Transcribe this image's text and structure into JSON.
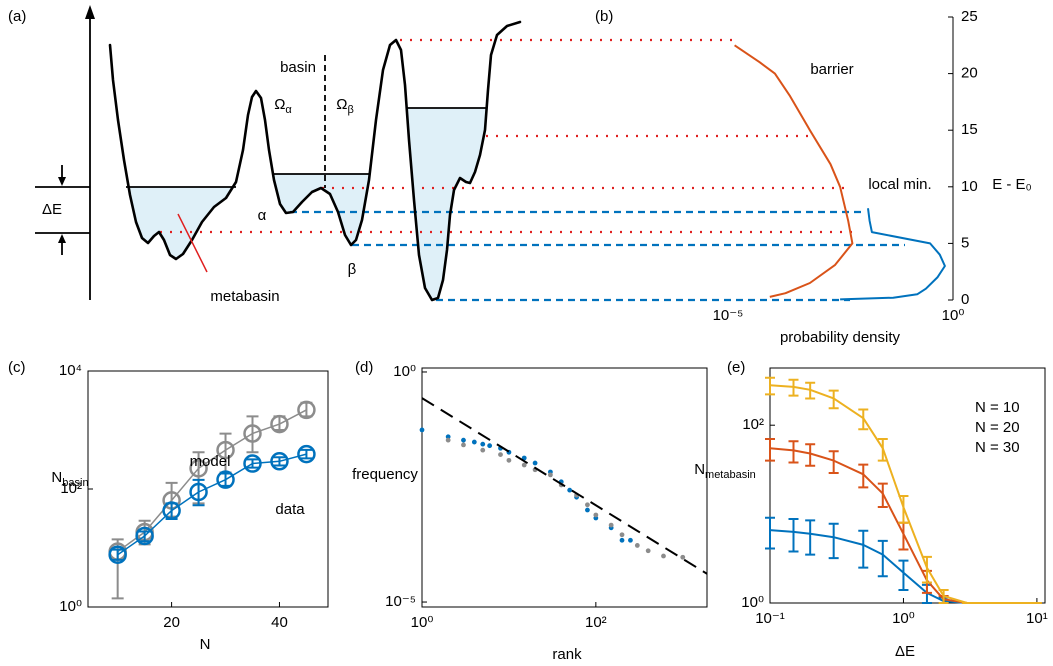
{
  "diagram": {
    "panel": "(a)",
    "delta_e": "ΔE",
    "basin": "basin",
    "omega_alpha": {
      "symbol": "Ω",
      "sub": "α"
    },
    "omega_beta": {
      "symbol": "Ω",
      "sub": "β"
    },
    "alpha": "α",
    "beta": "β",
    "metabasin": "metabasin"
  },
  "chart_data": [
    {
      "type": "line",
      "panel": "(b)",
      "xlabel": "probability density",
      "ylabel": "E - E₀",
      "xscale": "log",
      "xlim": [
        1e-05,
        1
      ],
      "xticks": [
        {
          "value": 1e-05,
          "label": "10⁻⁵"
        },
        {
          "value": 1,
          "label": "10⁰"
        }
      ],
      "ylim": [
        0,
        25
      ],
      "yticks": [
        0,
        5,
        10,
        15,
        20,
        25
      ],
      "yaxis_side": "right",
      "series": [
        {
          "name": "barrier",
          "color": "#d95319",
          "x": [
            1.4e-05,
            5.1e-05,
            0.00011,
            0.00024,
            0.00066,
            0.0019,
            0.0031,
            0.0047,
            0.0058,
            0.0024,
            0.00066,
            0.00019,
            8.5e-05
          ],
          "y": [
            22.5,
            21,
            20,
            18,
            15,
            12,
            10,
            7,
            5,
            3.1,
            1.5,
            0.6,
            0.27
          ]
        },
        {
          "name": "local min.",
          "color": "#0072bd",
          "x": [
            0.0129,
            0.014,
            0.0158,
            0.31,
            0.51,
            0.66,
            0.45,
            0.25,
            0.16,
            0.047,
            0.0031
          ],
          "y": [
            8.1,
            7,
            6,
            5,
            4,
            3,
            2,
            1,
            0.5,
            0.2,
            0.05
          ]
        }
      ]
    },
    {
      "type": "errorbar-line",
      "panel": "(c)",
      "xlabel": "N",
      "ylabel": "N",
      "ylabel_sub": "basin",
      "yscale": "log",
      "xlim": [
        4.5,
        49
      ],
      "xticks": [
        20,
        40
      ],
      "ylim": [
        1,
        10000
      ],
      "yticks": [
        {
          "value": 1,
          "label": "10⁰"
        },
        {
          "value": 100,
          "label": "10²"
        },
        {
          "value": 10000,
          "label": "10⁴"
        }
      ],
      "markers": true,
      "x": [
        10,
        15,
        20,
        25,
        30,
        35,
        40,
        45
      ],
      "series": [
        {
          "name": "model",
          "color": "#8c8c8c",
          "values": [
            8.7,
            18.6,
            64,
            224,
            457,
            871,
            1260,
            2190
          ],
          "err_low": [
            1.4,
            11.5,
            34,
            57,
            190,
            420,
            1000,
            1700
          ],
          "err_high": [
            14,
            29,
            127,
            420,
            870,
            1700,
            1700,
            2900
          ]
        },
        {
          "name": "data",
          "color": "#0072bd",
          "values": [
            7.7,
            16,
            43,
            89,
            144,
            270,
            295,
            390
          ],
          "err_low": [
            6.3,
            13,
            31,
            53,
            113,
            230,
            250,
            330
          ],
          "err_high": [
            9.4,
            19,
            57,
            143,
            183,
            318,
            346,
            460
          ]
        }
      ]
    },
    {
      "type": "scatter",
      "panel": "(d)",
      "xlabel": "rank",
      "ylabel": "frequency",
      "xscale": "log",
      "yscale": "log",
      "xlim": [
        1,
        1900
      ],
      "xticks": [
        {
          "value": 1,
          "label": "10⁰"
        },
        {
          "value": 100,
          "label": "10²"
        }
      ],
      "ylim": [
        7.8e-06,
        1.22
      ],
      "yticks": [
        {
          "value": 1,
          "label": "10⁰"
        },
        {
          "value": 1e-05,
          "label": "10⁻⁵"
        }
      ],
      "series": [
        {
          "color": "#0072bd",
          "x": [
            1,
            2,
            3,
            4,
            5,
            6,
            8,
            10,
            15,
            20,
            30,
            40,
            50,
            60,
            80,
            100,
            150,
            200,
            250
          ],
          "y": [
            0.055,
            0.039,
            0.033,
            0.03,
            0.027,
            0.025,
            0.022,
            0.018,
            0.0135,
            0.0105,
            0.0067,
            0.0041,
            0.0027,
            0.0019,
            0.001,
            0.00067,
            0.00041,
            0.00022,
            0.00022
          ]
        },
        {
          "color": "#8c8c8c",
          "x": [
            2,
            3,
            5,
            8,
            10,
            15,
            20,
            30,
            40,
            60,
            80,
            100,
            150,
            200,
            300,
            400,
            600,
            1000
          ],
          "y": [
            0.033,
            0.026,
            0.02,
            0.016,
            0.012,
            0.0095,
            0.0075,
            0.0058,
            0.0035,
            0.0021,
            0.0013,
            0.00078,
            0.00047,
            0.00029,
            0.00017,
            0.00013,
            0.0001,
            9.4e-05
          ]
        },
        {
          "type": "line",
          "style": "dashed",
          "color": "#000000",
          "x": [
            1,
            1900
          ],
          "y": [
            0.27,
            4.1e-05
          ]
        }
      ]
    },
    {
      "type": "errorbar-line",
      "panel": "(e)",
      "xlabel": "ΔE",
      "ylabel": "N",
      "ylabel_sub": "metabasin",
      "xscale": "log",
      "yscale": "log",
      "xlim": [
        0.1,
        11.5
      ],
      "xticks": [
        {
          "value": 0.1,
          "label": "10⁻¹"
        },
        {
          "value": 1,
          "label": "10⁰"
        },
        {
          "value": 10,
          "label": "10¹"
        }
      ],
      "ylim": [
        1,
        440
      ],
      "yticks": [
        {
          "value": 1,
          "label": "10⁰"
        },
        {
          "value": 100,
          "label": "10²"
        }
      ],
      "legend": "upper right",
      "x": [
        0.1,
        0.15,
        0.2,
        0.3,
        0.5,
        0.7,
        1,
        1.5,
        2,
        3,
        5,
        10
      ],
      "series": [
        {
          "name": "N = 10",
          "color": "#0072bd",
          "values": [
            6.6,
            6.3,
            6,
            5.5,
            4.5,
            3.5,
            2.2,
            1.3,
            1.05,
            1,
            1,
            1
          ],
          "errors": [
            2.5,
            2.5,
            2.5,
            2.3,
            2,
            1.5,
            0.8,
            0.3,
            0.1,
            0,
            0,
            0
          ]
        },
        {
          "name": "N = 20",
          "color": "#d95319",
          "values": [
            55,
            52,
            48,
            40,
            28,
            17,
            6,
            1.8,
            1.1,
            1,
            1,
            1
          ],
          "errors": [
            15,
            14,
            13,
            11,
            8,
            5,
            2,
            0.5,
            0.1,
            0,
            0,
            0
          ]
        },
        {
          "name": "N = 30",
          "color": "#edb120",
          "values": [
            282,
            270,
            250,
            200,
            120,
            55,
            12,
            2.5,
            1.2,
            1,
            1,
            1
          ],
          "errors": [
            60,
            55,
            50,
            45,
            30,
            15,
            4,
            0.8,
            0.2,
            0,
            0,
            0
          ]
        }
      ]
    }
  ]
}
